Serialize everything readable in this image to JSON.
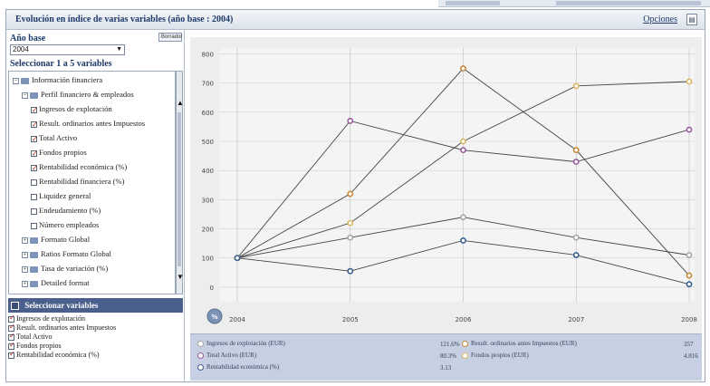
{
  "window": {
    "title": "Evolución en índice de varias variables (año base : 2004)",
    "options_label": "Opciones"
  },
  "base_year": {
    "label": "Año base",
    "value": "2004",
    "clear_button": "Borrador"
  },
  "select_label": "Seleccionar 1 a 5 variables",
  "tree": [
    {
      "label": "Información financiera",
      "level": 0,
      "type": "folder",
      "expanded": true
    },
    {
      "label": "Perfil financiero & empleados",
      "level": 1,
      "type": "folder",
      "expanded": true
    },
    {
      "label": "Ingresos de explotación",
      "level": 2,
      "type": "check",
      "checked": true
    },
    {
      "label": "Result. ordinarios antes Impuestos",
      "level": 2,
      "type": "check",
      "checked": true
    },
    {
      "label": "Total Activo",
      "level": 2,
      "type": "check",
      "checked": true
    },
    {
      "label": "Fondos propios",
      "level": 2,
      "type": "check",
      "checked": true
    },
    {
      "label": "Rentabilidad económica (%)",
      "level": 2,
      "type": "check",
      "checked": true
    },
    {
      "label": "Rentabilidad financiera (%)",
      "level": 2,
      "type": "check",
      "checked": false
    },
    {
      "label": "Liquidez general",
      "level": 2,
      "type": "check",
      "checked": false
    },
    {
      "label": "Endeudamiento (%)",
      "level": 2,
      "type": "check",
      "checked": false
    },
    {
      "label": "Número empleados",
      "level": 2,
      "type": "check",
      "checked": false
    },
    {
      "label": "Formato Global",
      "level": 1,
      "type": "folder",
      "expanded": false
    },
    {
      "label": "Ratios Formato Global",
      "level": 1,
      "type": "folder",
      "expanded": false
    },
    {
      "label": "Tasa de variación (%)",
      "level": 1,
      "type": "folder",
      "expanded": false
    },
    {
      "label": "Detailed format",
      "level": 1,
      "type": "folder",
      "expanded": false
    }
  ],
  "selected_header": "Seleccionar variables",
  "selected_items": [
    "Ingresos de explotación",
    "Result. ordinarios antes Impuestos",
    "Total Activo",
    "Fondos propios",
    "Rentabilidad económica (%)"
  ],
  "chart_data": {
    "type": "line",
    "x": [
      "2004",
      "2005",
      "2006",
      "2007",
      "2008"
    ],
    "ylim": [
      -50,
      820
    ],
    "yticks": [
      0,
      100,
      200,
      300,
      400,
      500,
      600,
      700,
      800
    ],
    "grid": true,
    "zoom_label": "%",
    "series": [
      {
        "name": "Ingresos de explotación (EUR)",
        "values": [
          100,
          170,
          240,
          170,
          110
        ],
        "color": "#a8a8a8",
        "legend_value": "121.6%"
      },
      {
        "name": "Result. ordinarios antes Impuestos (EUR)",
        "values": [
          100,
          320,
          750,
          470,
          40
        ],
        "color": "#c8873a",
        "legend_value": "357"
      },
      {
        "name": "Total Activo (EUR)",
        "values": [
          100,
          570,
          470,
          430,
          540
        ],
        "color": "#9a5c9e",
        "legend_value": "80.3%"
      },
      {
        "name": "Fondos propios (EUR)",
        "values": [
          100,
          220,
          500,
          690,
          705
        ],
        "color": "#d9b860",
        "legend_value": "4.816"
      },
      {
        "name": "Rentabilidad económica (%)",
        "values": [
          100,
          55,
          160,
          110,
          10
        ],
        "color": "#3a5f8f",
        "legend_value": "3.13"
      }
    ]
  }
}
